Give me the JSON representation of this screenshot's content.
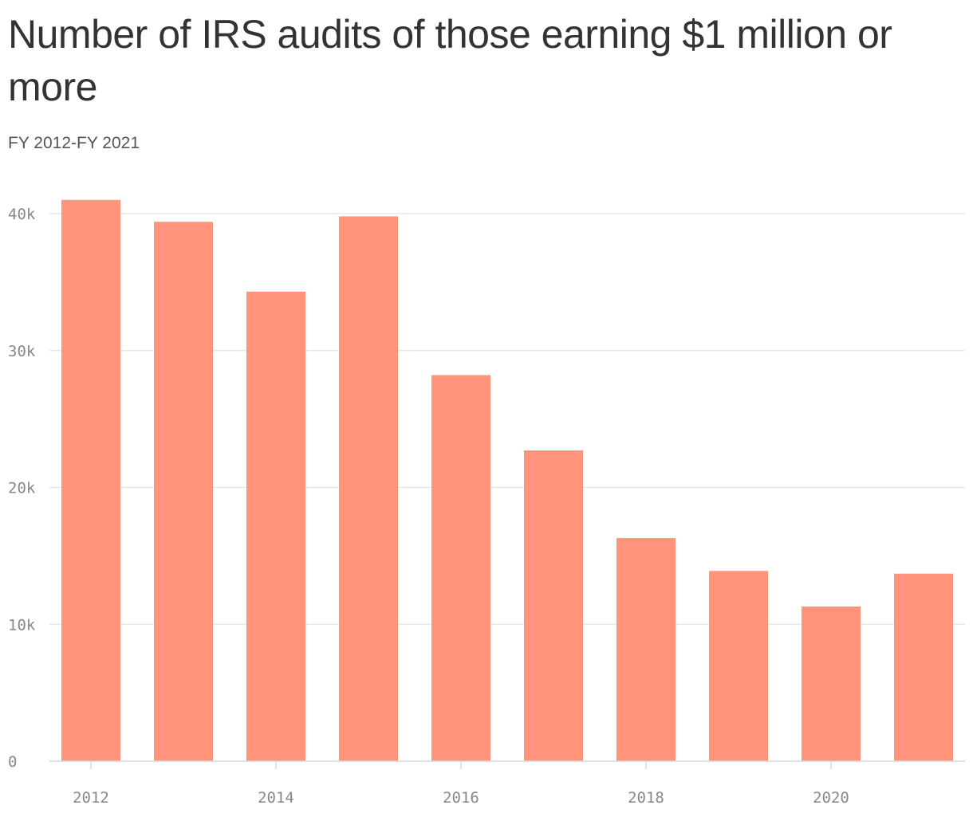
{
  "chart_data": {
    "type": "bar",
    "title": "Number of IRS audits of those earning $1 million or more",
    "subtitle": "FY 2012-FY 2021",
    "x": [
      2012,
      2013,
      2014,
      2015,
      2016,
      2017,
      2018,
      2019,
      2020,
      2021
    ],
    "values": [
      41000,
      39400,
      34300,
      39800,
      28200,
      22700,
      16300,
      13900,
      11300,
      13700
    ],
    "ylim": [
      0,
      40000
    ],
    "yticks": [
      0,
      10000,
      20000,
      30000,
      40000
    ],
    "ytick_labels": [
      "0",
      "10k",
      "20k",
      "30k",
      "40k"
    ],
    "xticks": [
      2012,
      2014,
      2016,
      2018,
      2020
    ],
    "xtick_labels": [
      "2012",
      "2014",
      "2016",
      "2018",
      "2020"
    ],
    "grid": true,
    "legend": "none",
    "colors": {
      "bar": "#ff937c",
      "grid": "#e3e3e3",
      "axis": "#d9d9d9",
      "tick_text": "#888888"
    }
  }
}
